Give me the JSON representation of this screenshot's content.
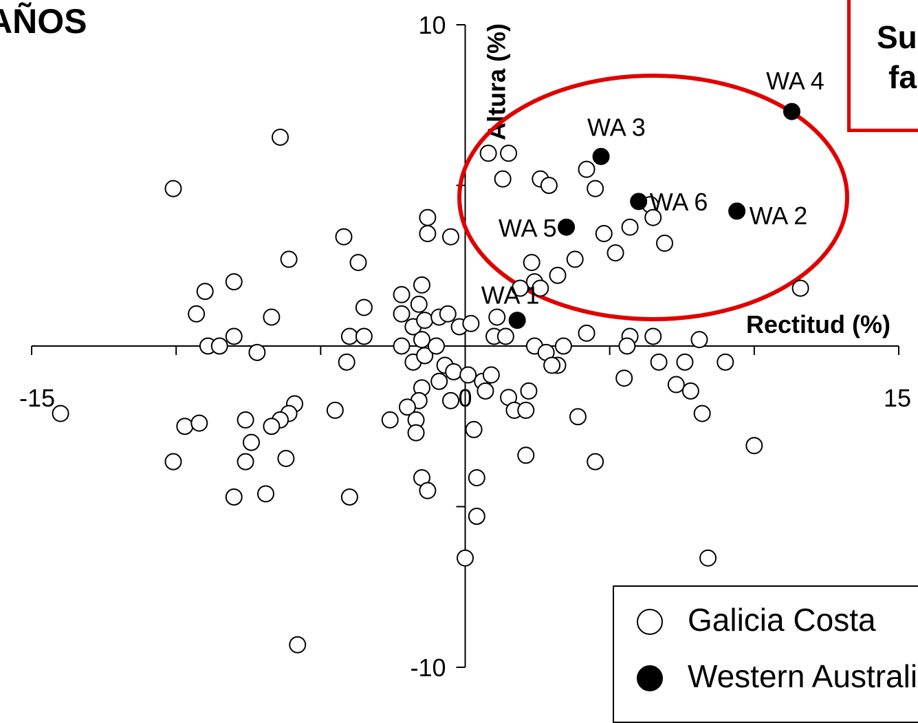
{
  "page": {
    "corner_title": "AÑOS",
    "note_box": {
      "line1": "Su",
      "line2": "fa",
      "border_color": "#e00000"
    },
    "highlight_ellipse_color": "#e00000"
  },
  "chart_data": {
    "type": "scatter",
    "xlabel": "Rectitud (%)",
    "ylabel": "Altura (%)",
    "xlim": [
      -15,
      15
    ],
    "ylim": [
      -10,
      10
    ],
    "x_tick_labels": [
      {
        "value": -15,
        "label": "-15"
      },
      {
        "value": 0,
        "label": "0"
      },
      {
        "value": 15,
        "label": "15"
      }
    ],
    "y_tick_labels": [
      {
        "value": 10,
        "label": "10"
      },
      {
        "value": -10,
        "label": "-10"
      }
    ],
    "x_minor_ticks": [
      -15,
      -10,
      -5,
      0,
      5,
      10,
      15
    ],
    "y_minor_ticks": [
      -10,
      -5,
      0,
      5,
      10
    ],
    "grid": false,
    "legend_position": "bottom-right",
    "series": [
      {
        "name": "Galicia Costa",
        "marker": "open-circle",
        "color": "#000000",
        "points": [
          [
            -6.4,
            6.5
          ],
          [
            -14.0,
            -2.1
          ],
          [
            -10.1,
            4.9
          ],
          [
            -4.2,
            3.4
          ],
          [
            -3.7,
            2.6
          ],
          [
            -0.5,
            3.4
          ],
          [
            -3.5,
            1.2
          ],
          [
            -2.2,
            1.6
          ],
          [
            -1.5,
            1.9
          ],
          [
            -1.6,
            1.3
          ],
          [
            -8.0,
            2.0
          ],
          [
            -6.1,
            2.7
          ],
          [
            -9.3,
            1.0
          ],
          [
            -9.0,
            1.7
          ],
          [
            -6.7,
            0.9
          ],
          [
            -4.0,
            0.3
          ],
          [
            -3.5,
            0.3
          ],
          [
            -8.0,
            0.3
          ],
          [
            -8.9,
            0.0
          ],
          [
            -8.5,
            0.0
          ],
          [
            -7.2,
            -0.2
          ],
          [
            -4.1,
            -0.5
          ],
          [
            -2.2,
            1.0
          ],
          [
            -1.8,
            0.6
          ],
          [
            -2.2,
            0.0
          ],
          [
            -1.5,
            0.2
          ],
          [
            -1.4,
            0.8
          ],
          [
            -1.8,
            -0.5
          ],
          [
            -1.4,
            -0.3
          ],
          [
            -0.9,
            0.9
          ],
          [
            -0.6,
            1.0
          ],
          [
            -0.7,
            -0.6
          ],
          [
            -1.0,
            0.0
          ],
          [
            -0.2,
            0.6
          ],
          [
            -0.4,
            -0.8
          ],
          [
            -0.9,
            -1.1
          ],
          [
            -1.5,
            -1.3
          ],
          [
            -1.6,
            -1.7
          ],
          [
            -2.0,
            -1.9
          ],
          [
            -1.7,
            -2.3
          ],
          [
            -1.7,
            -2.7
          ],
          [
            -2.6,
            -2.3
          ],
          [
            -4.5,
            -2.0
          ],
          [
            -5.9,
            -1.8
          ],
          [
            -6.1,
            -2.1
          ],
          [
            -6.4,
            -2.3
          ],
          [
            -6.7,
            -2.5
          ],
          [
            -7.6,
            -2.3
          ],
          [
            -9.7,
            -2.5
          ],
          [
            -9.2,
            -2.4
          ],
          [
            -7.4,
            -3.0
          ],
          [
            -7.6,
            -3.6
          ],
          [
            -10.1,
            -3.6
          ],
          [
            -8.0,
            -4.7
          ],
          [
            -6.9,
            -4.6
          ],
          [
            -6.2,
            -3.5
          ],
          [
            -4.0,
            -4.7
          ],
          [
            -1.5,
            -4.1
          ],
          [
            -1.3,
            -4.5
          ],
          [
            0.4,
            -4.1
          ],
          [
            0.4,
            -5.3
          ],
          [
            0.0,
            -6.6
          ],
          [
            0.3,
            -2.6
          ],
          [
            -0.5,
            -1.7
          ],
          [
            0.1,
            -0.9
          ],
          [
            0.6,
            -1.1
          ],
          [
            0.2,
            0.7
          ],
          [
            1.0,
            0.3
          ],
          [
            1.4,
            0.3
          ],
          [
            1.1,
            0.9
          ],
          [
            0.9,
            -0.9
          ],
          [
            0.7,
            -1.4
          ],
          [
            1.5,
            -1.6
          ],
          [
            1.7,
            -2.0
          ],
          [
            2.1,
            -2.0
          ],
          [
            2.2,
            -1.4
          ],
          [
            3.9,
            -2.2
          ],
          [
            2.1,
            -3.4
          ],
          [
            4.5,
            -3.6
          ],
          [
            5.5,
            -1.0
          ],
          [
            4.2,
            0.4
          ],
          [
            5.7,
            0.3
          ],
          [
            5.6,
            0.0
          ],
          [
            2.4,
            0.0
          ],
          [
            3.4,
            0.0
          ],
          [
            2.8,
            -0.2
          ],
          [
            3.2,
            -0.6
          ],
          [
            3.0,
            -0.6
          ],
          [
            6.7,
            -0.5
          ],
          [
            7.3,
            -1.2
          ],
          [
            8.1,
            0.2
          ],
          [
            7.6,
            -0.5
          ],
          [
            9.0,
            -0.5
          ],
          [
            6.5,
            0.3
          ],
          [
            7.8,
            -1.4
          ],
          [
            8.2,
            -2.1
          ],
          [
            10.0,
            -3.1
          ],
          [
            8.4,
            -6.6
          ],
          [
            -5.8,
            -9.3
          ],
          [
            0.8,
            6.0
          ],
          [
            1.3,
            5.2
          ],
          [
            1.5,
            6.0
          ],
          [
            2.6,
            5.2
          ],
          [
            2.9,
            5.0
          ],
          [
            4.2,
            5.5
          ],
          [
            4.5,
            4.9
          ],
          [
            4.8,
            3.5
          ],
          [
            5.2,
            2.9
          ],
          [
            5.7,
            3.7
          ],
          [
            6.4,
            4.4
          ],
          [
            6.5,
            4.0
          ],
          [
            6.9,
            3.2
          ],
          [
            2.3,
            2.6
          ],
          [
            3.8,
            2.7
          ],
          [
            3.2,
            2.2
          ],
          [
            2.4,
            2.0
          ],
          [
            1.9,
            1.8
          ],
          [
            2.6,
            1.8
          ],
          [
            11.6,
            1.8
          ],
          [
            -1.3,
            3.5
          ],
          [
            -1.3,
            4.0
          ]
        ]
      },
      {
        "name": "Western Australia",
        "marker": "filled-circle",
        "color": "#000000",
        "points": [
          {
            "x": 1.8,
            "y": 0.8,
            "label": "WA 1"
          },
          {
            "x": 9.4,
            "y": 4.2,
            "label": "WA 2"
          },
          {
            "x": 4.7,
            "y": 5.9,
            "label": "WA 3"
          },
          {
            "x": 11.3,
            "y": 7.3,
            "label": "WA 4"
          },
          {
            "x": 3.5,
            "y": 3.7,
            "label": "WA 5"
          },
          {
            "x": 6.0,
            "y": 4.5,
            "label": "WA 6"
          }
        ]
      }
    ]
  }
}
